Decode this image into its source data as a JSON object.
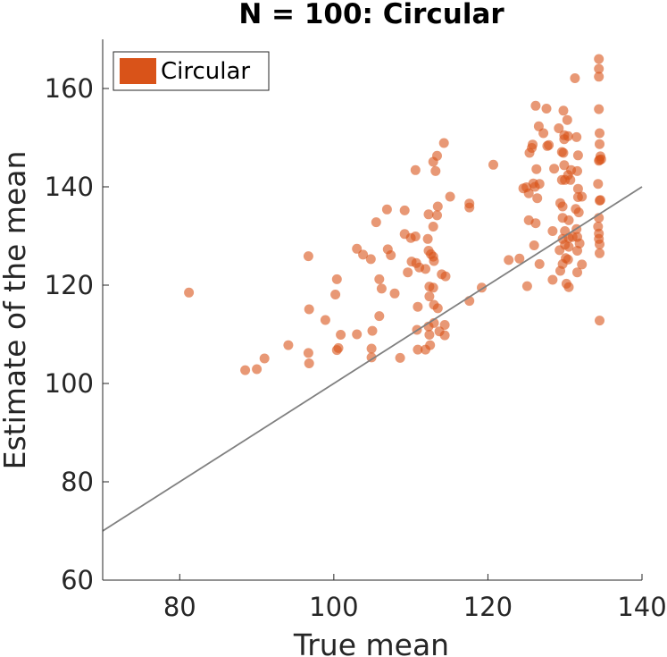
{
  "chart_data": {
    "type": "scatter",
    "title": "N = 100: Circular",
    "xlabel": "True mean",
    "ylabel": "Estimate of the mean",
    "xlim": [
      70,
      140
    ],
    "ylim": [
      60,
      170
    ],
    "xticks": [
      80,
      100,
      120,
      140
    ],
    "yticks": [
      60,
      80,
      100,
      120,
      140,
      160
    ],
    "grid": false,
    "legend_position": "top-left",
    "series": [
      {
        "name": "Circular",
        "color": "#D95319",
        "points": [
          [
            81.2,
            118.5
          ],
          [
            88.5,
            102.7
          ],
          [
            90.0,
            102.9
          ],
          [
            91.0,
            105.1
          ],
          [
            94.1,
            107.8
          ],
          [
            96.7,
            125.9
          ],
          [
            96.8,
            115.1
          ],
          [
            96.7,
            106.2
          ],
          [
            96.8,
            104.1
          ],
          [
            98.9,
            112.9
          ],
          [
            100.2,
            118.1
          ],
          [
            100.4,
            121.2
          ],
          [
            100.6,
            107.2
          ],
          [
            100.9,
            109.9
          ],
          [
            100.4,
            106.8
          ],
          [
            103.0,
            127.4
          ],
          [
            103.0,
            110.0
          ],
          [
            103.8,
            126.2
          ],
          [
            104.8,
            125.3
          ],
          [
            105.0,
            110.7
          ],
          [
            104.9,
            107.1
          ],
          [
            104.9,
            105.3
          ],
          [
            105.5,
            132.8
          ],
          [
            105.9,
            121.2
          ],
          [
            105.9,
            113.7
          ],
          [
            106.2,
            119.3
          ],
          [
            106.9,
            135.4
          ],
          [
            107.0,
            127.3
          ],
          [
            107.4,
            126.1
          ],
          [
            107.9,
            118.3
          ],
          [
            108.6,
            105.2
          ],
          [
            109.2,
            135.2
          ],
          [
            109.2,
            130.4
          ],
          [
            109.6,
            122.6
          ],
          [
            110.0,
            129.6
          ],
          [
            110.1,
            124.8
          ],
          [
            110.6,
            143.4
          ],
          [
            110.6,
            129.9
          ],
          [
            110.7,
            124.5
          ],
          [
            110.9,
            115.6
          ],
          [
            110.8,
            110.9
          ],
          [
            110.9,
            106.9
          ],
          [
            111.1,
            123.6
          ],
          [
            111.9,
            106.9
          ],
          [
            111.9,
            123.3
          ],
          [
            112.3,
            134.4
          ],
          [
            112.2,
            129.4
          ],
          [
            112.3,
            127.0
          ],
          [
            112.4,
            119.7
          ],
          [
            112.4,
            117.7
          ],
          [
            112.3,
            111.6
          ],
          [
            112.4,
            109.9
          ],
          [
            112.5,
            107.8
          ],
          [
            112.6,
            126.3
          ],
          [
            112.9,
            145.1
          ],
          [
            112.9,
            131.9
          ],
          [
            112.9,
            125.8
          ],
          [
            113.0,
            124.9
          ],
          [
            112.9,
            119.5
          ],
          [
            113.0,
            116.0
          ],
          [
            113.0,
            112.3
          ],
          [
            113.2,
            143.2
          ],
          [
            113.4,
            146.3
          ],
          [
            113.4,
            134.2
          ],
          [
            113.5,
            136.0
          ],
          [
            113.5,
            115.3
          ],
          [
            113.7,
            110.6
          ],
          [
            114.0,
            122.2
          ],
          [
            114.3,
            148.9
          ],
          [
            114.5,
            121.8
          ],
          [
            114.4,
            111.9
          ],
          [
            114.4,
            109.8
          ],
          [
            115.1,
            138.0
          ],
          [
            117.6,
            136.6
          ],
          [
            117.6,
            135.8
          ],
          [
            117.6,
            116.8
          ],
          [
            119.2,
            119.5
          ],
          [
            120.7,
            144.5
          ],
          [
            122.7,
            125.1
          ],
          [
            124.1,
            125.4
          ],
          [
            124.6,
            139.7
          ],
          [
            125.0,
            139.9
          ],
          [
            125.1,
            119.8
          ],
          [
            125.3,
            133.2
          ],
          [
            125.3,
            138.7
          ],
          [
            125.4,
            146.9
          ],
          [
            125.7,
            147.9
          ],
          [
            125.8,
            148.6
          ],
          [
            125.9,
            140.7
          ],
          [
            126.1,
            140.0
          ],
          [
            126.3,
            143.6
          ],
          [
            126.4,
            137.7
          ],
          [
            126.2,
            132.6
          ],
          [
            126.0,
            128.1
          ],
          [
            126.2,
            156.5
          ],
          [
            126.6,
            152.3
          ],
          [
            126.7,
            140.6
          ],
          [
            126.7,
            124.3
          ],
          [
            127.2,
            150.9
          ],
          [
            127.6,
            155.9
          ],
          [
            127.7,
            148.3
          ],
          [
            127.9,
            148.5
          ],
          [
            128.4,
            131.0
          ],
          [
            128.4,
            121.1
          ],
          [
            128.6,
            143.7
          ],
          [
            129.2,
            151.9
          ],
          [
            129.4,
            136.7
          ],
          [
            129.3,
            127.1
          ],
          [
            129.4,
            122.9
          ],
          [
            129.6,
            147.1
          ],
          [
            129.6,
            141.4
          ],
          [
            129.7,
            136.0
          ],
          [
            129.7,
            133.7
          ],
          [
            129.7,
            124.3
          ],
          [
            129.7,
            129.4
          ],
          [
            129.8,
            155.5
          ],
          [
            129.9,
            150.5
          ],
          [
            129.9,
            149.7
          ],
          [
            129.8,
            146.9
          ],
          [
            129.9,
            144.4
          ],
          [
            130.0,
            141.4
          ],
          [
            130.0,
            131.0
          ],
          [
            130.0,
            128.2
          ],
          [
            130.1,
            125.5
          ],
          [
            130.2,
            120.3
          ],
          [
            130.3,
            153.6
          ],
          [
            130.4,
            150.3
          ],
          [
            130.4,
            142.4
          ],
          [
            130.5,
            133.2
          ],
          [
            130.5,
            129.6
          ],
          [
            130.5,
            127.8
          ],
          [
            130.4,
            125.2
          ],
          [
            130.5,
            119.6
          ],
          [
            130.8,
            143.4
          ],
          [
            130.7,
            141.4
          ],
          [
            131.0,
            129.8
          ],
          [
            131.3,
            162.1
          ],
          [
            131.5,
            150.1
          ],
          [
            131.4,
            135.5
          ],
          [
            131.5,
            131.4
          ],
          [
            131.6,
            129.8
          ],
          [
            131.6,
            127.0
          ],
          [
            131.6,
            122.6
          ],
          [
            131.7,
            146.4
          ],
          [
            131.7,
            137.9
          ],
          [
            131.7,
            139.6
          ],
          [
            131.6,
            143.2
          ],
          [
            131.8,
            134.8
          ],
          [
            131.9,
            128.5
          ],
          [
            132.2,
            138.0
          ],
          [
            132.2,
            124.2
          ],
          [
            134.4,
            166.0
          ],
          [
            134.4,
            164.0
          ],
          [
            134.4,
            162.4
          ],
          [
            134.4,
            155.8
          ],
          [
            134.5,
            150.9
          ],
          [
            134.5,
            148.7
          ],
          [
            134.6,
            146.2
          ],
          [
            134.5,
            145.5
          ],
          [
            134.4,
            145.3
          ],
          [
            134.3,
            140.6
          ],
          [
            134.5,
            137.2
          ],
          [
            134.4,
            133.7
          ],
          [
            134.3,
            131.9
          ],
          [
            134.4,
            130.5
          ],
          [
            134.4,
            129.4
          ],
          [
            134.5,
            128.3
          ],
          [
            134.5,
            126.5
          ],
          [
            134.5,
            112.8
          ],
          [
            134.7,
            145.6
          ],
          [
            134.6,
            137.3
          ]
        ]
      }
    ],
    "reference_line": {
      "type": "identity",
      "color": "#808080"
    }
  }
}
